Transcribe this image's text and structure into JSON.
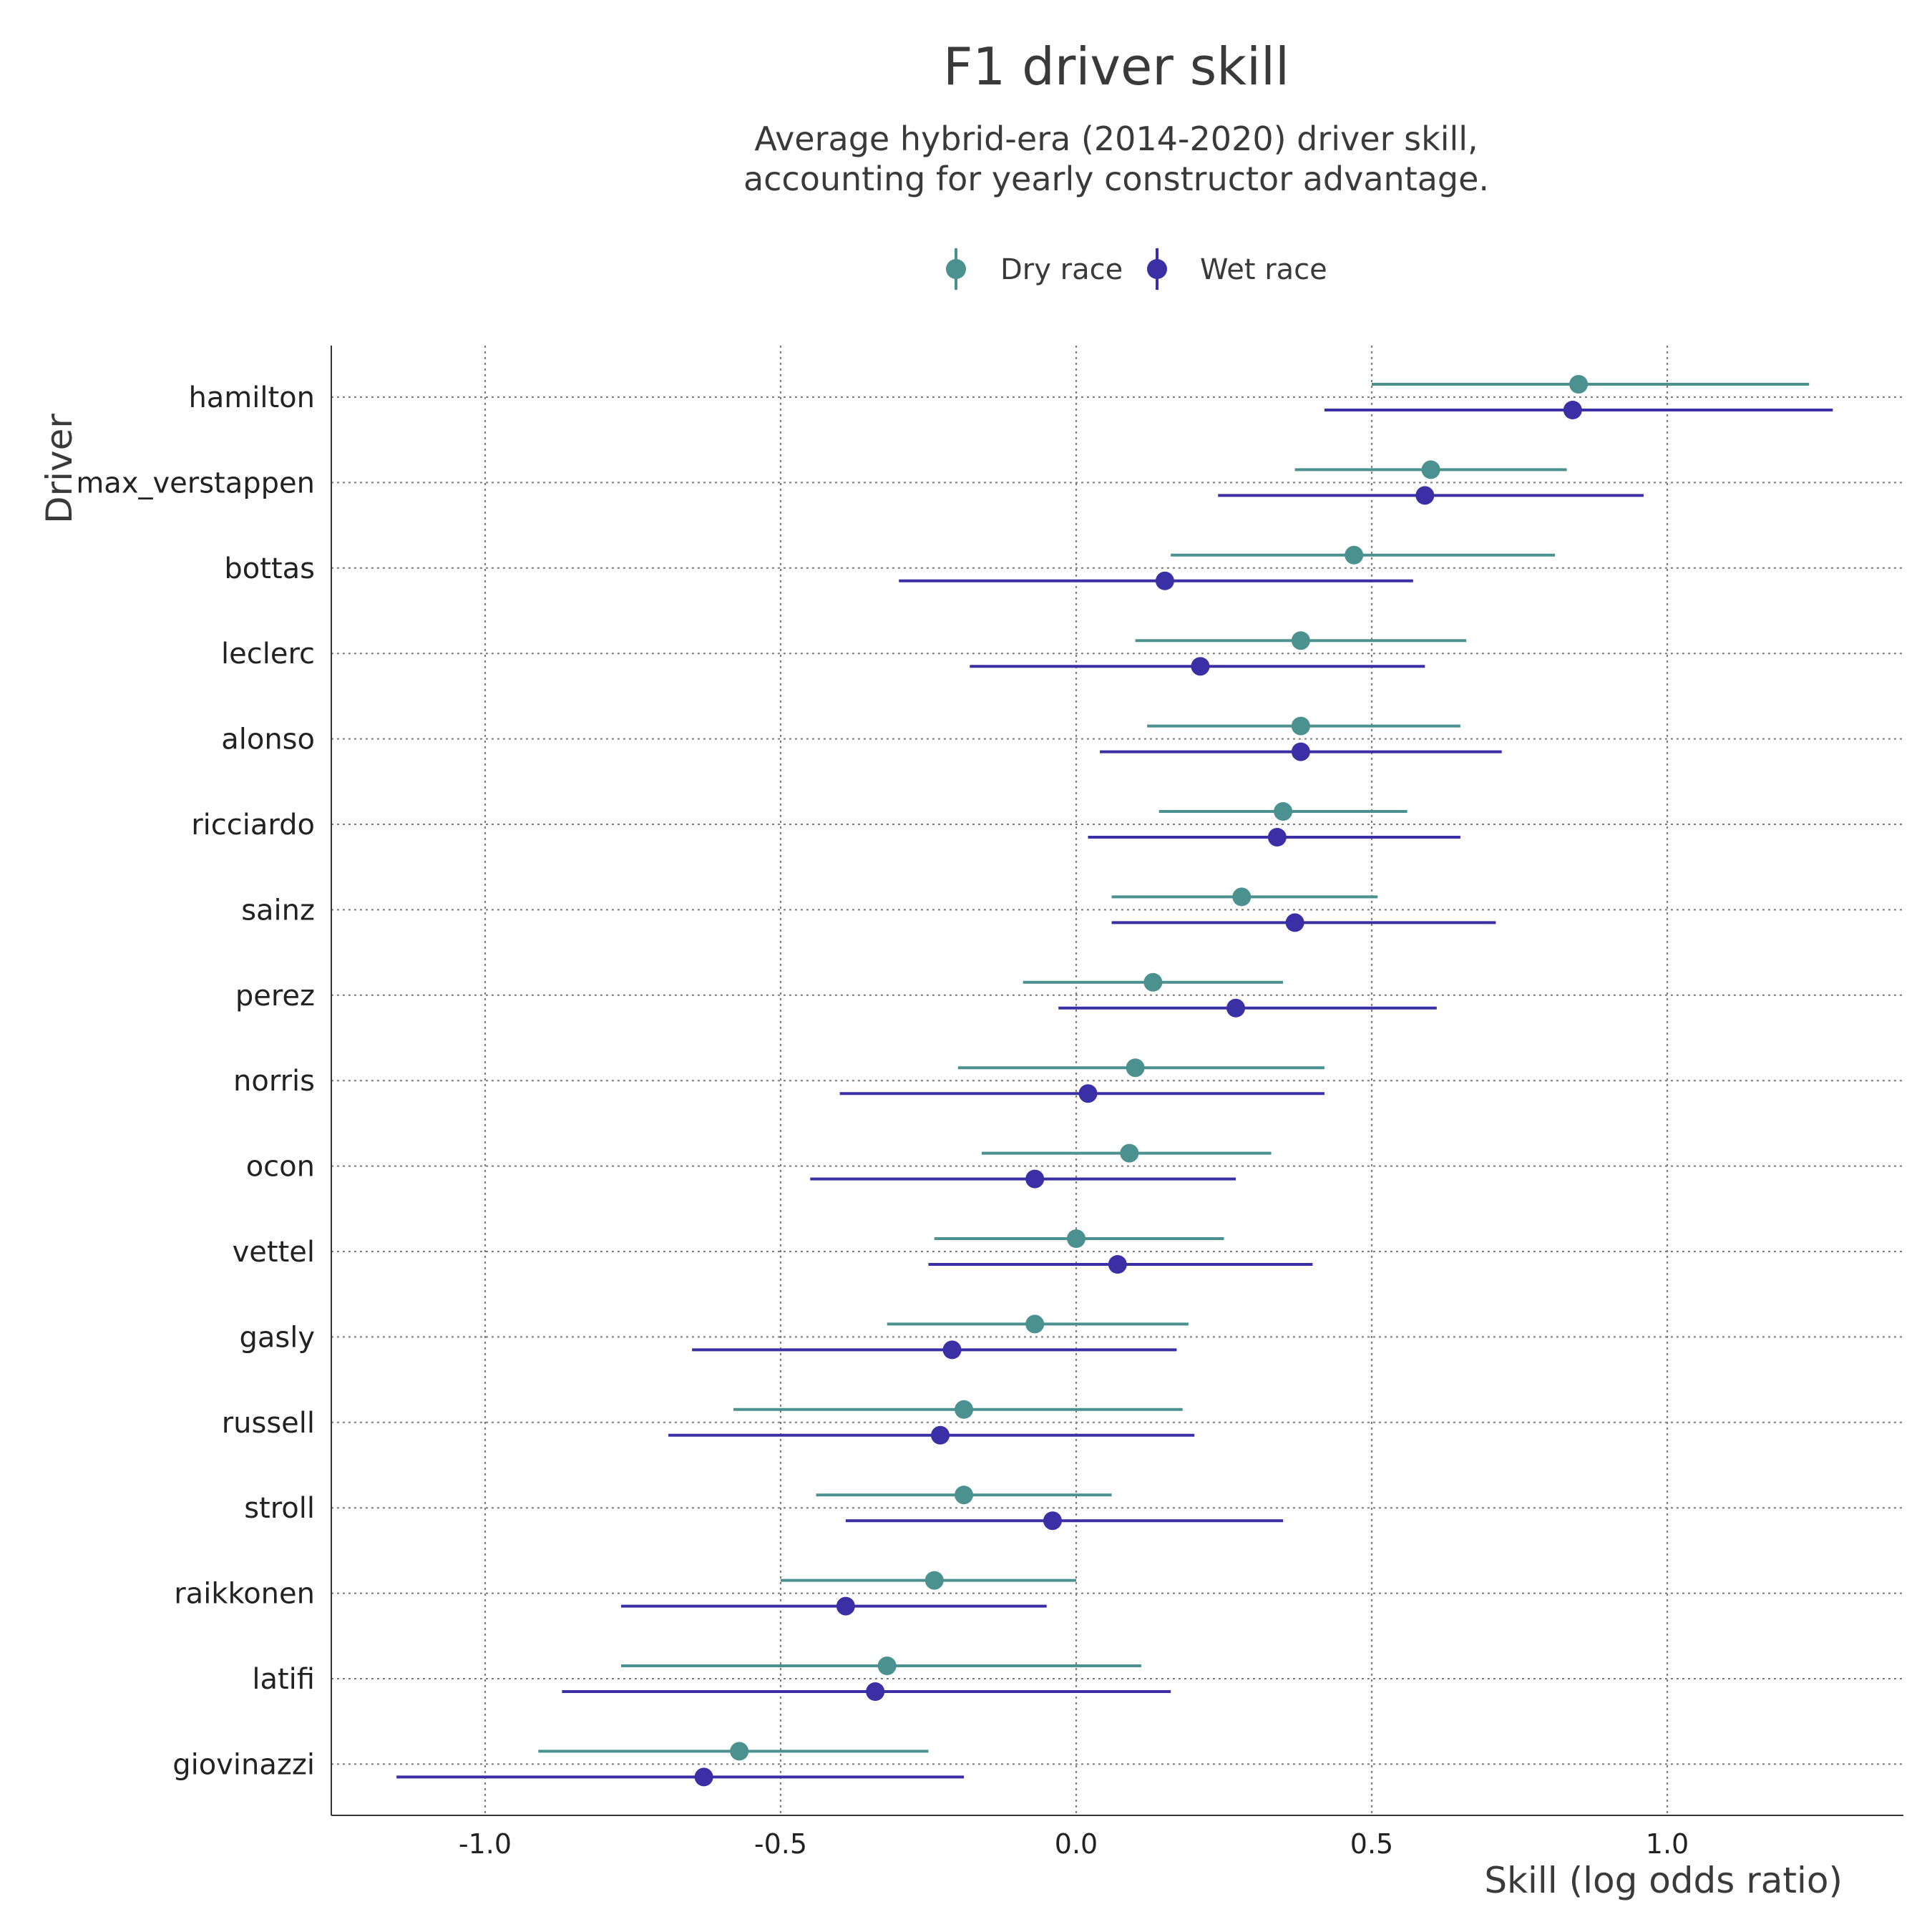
{
  "chart_data": {
    "type": "scatter",
    "title": "F1 driver skill",
    "subtitle_lines": [
      "Average hybrid-era (2014-2020) driver skill,",
      "accounting for yearly constructor advantage."
    ],
    "xlabel": "Skill (log odds ratio)",
    "ylabel": "Driver",
    "xlim": [
      -1.3,
      1.4
    ],
    "xticks": [
      -1.0,
      -0.5,
      0.0,
      0.5,
      1.0
    ],
    "xtick_labels": [
      "-1.0",
      "-0.5",
      "0.0",
      "0.5",
      "1.0"
    ],
    "grid": true,
    "legend_position": "top",
    "categories": [
      "hamilton",
      "max_verstappen",
      "bottas",
      "leclerc",
      "alonso",
      "ricciardo",
      "sainz",
      "perez",
      "norris",
      "ocon",
      "vettel",
      "gasly",
      "russell",
      "stroll",
      "raikkonen",
      "latifi",
      "giovinazzi"
    ],
    "series": [
      {
        "name": "Dry race",
        "color": "#4a918f",
        "values": [
          0.85,
          0.6,
          0.47,
          0.38,
          0.38,
          0.35,
          0.28,
          0.13,
          0.1,
          0.09,
          0.0,
          -0.07,
          -0.19,
          -0.19,
          -0.24,
          -0.32,
          -0.57
        ],
        "lower": [
          0.5,
          0.37,
          0.16,
          0.1,
          0.12,
          0.14,
          0.06,
          -0.09,
          -0.2,
          -0.16,
          -0.24,
          -0.32,
          -0.58,
          -0.44,
          -0.5,
          -0.77,
          -0.91
        ],
        "upper": [
          1.24,
          0.83,
          0.81,
          0.66,
          0.65,
          0.56,
          0.51,
          0.35,
          0.42,
          0.33,
          0.25,
          0.19,
          0.18,
          0.06,
          0.0,
          0.11,
          -0.25
        ]
      },
      {
        "name": "Wet race",
        "color": "#3a2fa5",
        "values": [
          0.84,
          0.59,
          0.15,
          0.21,
          0.38,
          0.34,
          0.37,
          0.27,
          0.02,
          -0.07,
          0.07,
          -0.21,
          -0.23,
          -0.04,
          -0.39,
          -0.34,
          -0.63
        ],
        "lower": [
          0.42,
          0.24,
          -0.3,
          -0.18,
          0.04,
          0.02,
          0.06,
          -0.03,
          -0.4,
          -0.45,
          -0.25,
          -0.65,
          -0.69,
          -0.39,
          -0.77,
          -0.87,
          -1.15
        ],
        "upper": [
          1.28,
          0.96,
          0.57,
          0.59,
          0.72,
          0.65,
          0.71,
          0.61,
          0.42,
          0.27,
          0.4,
          0.17,
          0.2,
          0.35,
          -0.05,
          0.16,
          -0.19
        ]
      }
    ]
  }
}
